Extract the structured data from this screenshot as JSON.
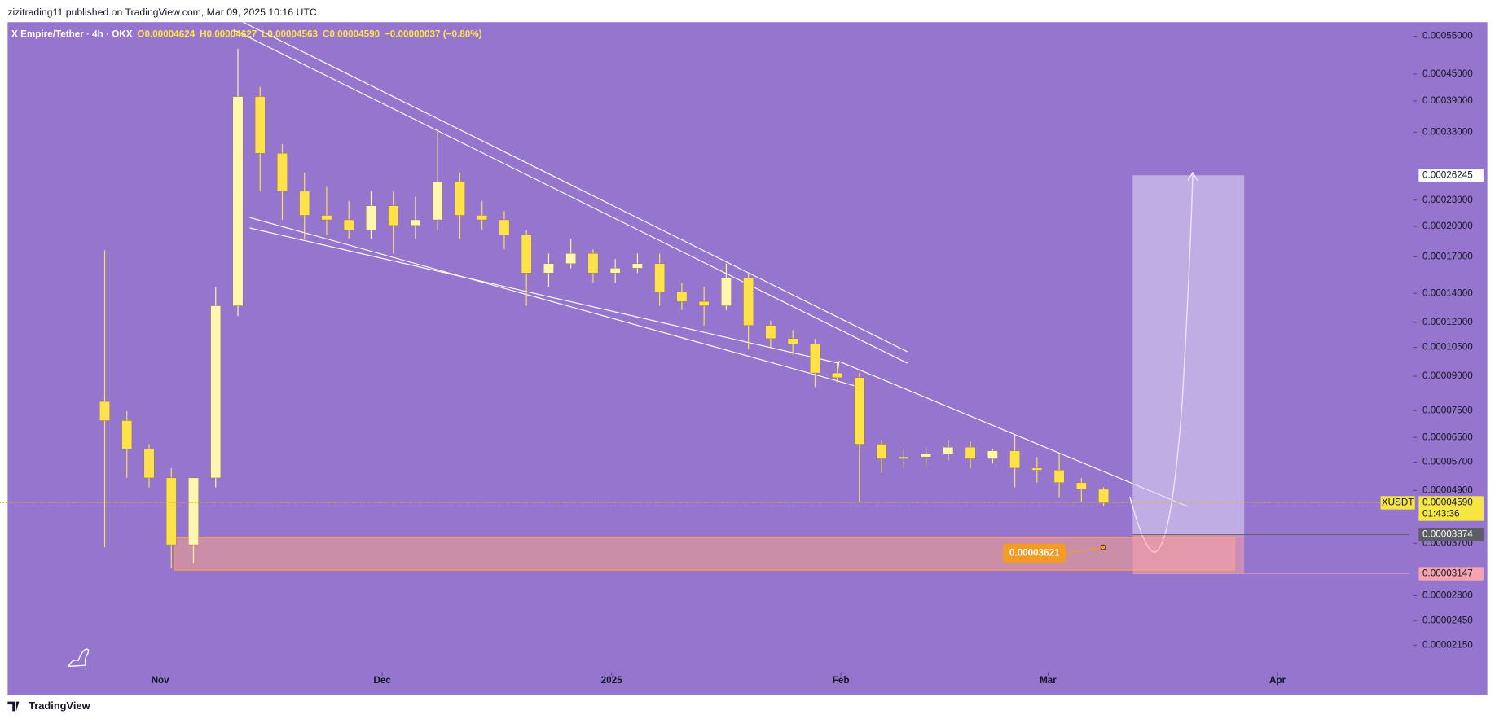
{
  "header": {
    "title": "zizitrading11 published on TradingView.com, Mar 09, 2025 10:16 UTC"
  },
  "footer": {
    "brand": "TradingView"
  },
  "chart_data": {
    "type": "candlestick",
    "legend": {
      "symbol": "X Empire/Tether · 4h · OKX",
      "open": "O0.00004624",
      "high": "H0.00004627",
      "low": "L0.00004563",
      "close": "C0.00004590",
      "change": "−0.00000037 (−0.80%)"
    },
    "log_scale": true,
    "up_color": "#fff6b0",
    "down_color": "#ffe24a",
    "xlim": [
      -21.65,
      168.8
    ],
    "xticks": [
      {
        "value": 0,
        "label": "Nov"
      },
      {
        "value": 30,
        "label": "Dec"
      },
      {
        "value": 61,
        "label": "2025"
      },
      {
        "value": 92,
        "label": "Feb"
      },
      {
        "value": 120,
        "label": "Mar"
      },
      {
        "value": 151,
        "label": "Apr"
      }
    ],
    "ylim": [
      1.902e-05,
      0.000593
    ],
    "yticks": [
      {
        "value": 0.00055,
        "label": "0.00055000"
      },
      {
        "value": 0.00045,
        "label": "0.00045000"
      },
      {
        "value": 0.00039,
        "label": "0.00039000"
      },
      {
        "value": 0.00033,
        "label": "0.00033000"
      },
      {
        "value": 0.00023,
        "label": "0.00023000"
      },
      {
        "value": 0.0002,
        "label": "0.00020000"
      },
      {
        "value": 0.00017,
        "label": "0.00017000"
      },
      {
        "value": 0.00014,
        "label": "0.00014000"
      },
      {
        "value": 0.00012,
        "label": "0.00012000"
      },
      {
        "value": 0.000105,
        "label": "0.00010500"
      },
      {
        "value": 9e-05,
        "label": "0.00009000"
      },
      {
        "value": 7.5e-05,
        "label": "0.00007500"
      },
      {
        "value": 6.5e-05,
        "label": "0.00006500"
      },
      {
        "value": 5.7e-05,
        "label": "0.00005700"
      },
      {
        "value": 4.9e-05,
        "label": "0.00004900"
      },
      {
        "value": 3.7e-05,
        "label": "0.00003700"
      },
      {
        "value": 2.8e-05,
        "label": "0.00002800"
      },
      {
        "value": 2.45e-05,
        "label": "0.00002450"
      },
      {
        "value": 2.15e-05,
        "label": "0.00002150"
      }
    ],
    "candles": [
      {
        "x": -7.5,
        "open": 7.87e-05,
        "high": 0.000176,
        "low": 3.62e-05,
        "close": 7.11e-05
      },
      {
        "x": -4.5,
        "open": 7.11e-05,
        "high": 7.48e-05,
        "low": 5.24e-05,
        "close": 6.11e-05
      },
      {
        "x": -1.5,
        "open": 6.11e-05,
        "high": 6.27e-05,
        "low": 4.98e-05,
        "close": 5.24e-05
      },
      {
        "x": 1.5,
        "open": 5.24e-05,
        "high": 5.52e-05,
        "low": 3.24e-05,
        "close": 3.67e-05
      },
      {
        "x": 4.5,
        "open": 3.67e-05,
        "high": 4.73e-05,
        "low": 3.32e-05,
        "close": 5.24e-05
      },
      {
        "x": 7.5,
        "open": 5.24e-05,
        "high": 0.000145,
        "low": 4.98e-05,
        "close": 0.000131
      },
      {
        "x": 10.5,
        "open": 0.000131,
        "high": 0.000515,
        "low": 0.000124,
        "close": 0.000399
      },
      {
        "x": 13.5,
        "open": 0.000399,
        "high": 0.00042,
        "low": 0.000241,
        "close": 0.000295
      },
      {
        "x": 16.5,
        "open": 0.000295,
        "high": 0.00031,
        "low": 0.000207,
        "close": 0.000241
      },
      {
        "x": 19.5,
        "open": 0.000241,
        "high": 0.000266,
        "low": 0.000187,
        "close": 0.000212
      },
      {
        "x": 22.5,
        "open": 0.000212,
        "high": 0.000247,
        "low": 0.000191,
        "close": 0.000207
      },
      {
        "x": 25.5,
        "open": 0.000207,
        "high": 0.000229,
        "low": 0.000187,
        "close": 0.000196
      },
      {
        "x": 28.5,
        "open": 0.000196,
        "high": 0.000241,
        "low": 0.000187,
        "close": 0.000223
      },
      {
        "x": 31.5,
        "open": 0.000223,
        "high": 0.000241,
        "low": 0.000173,
        "close": 0.000201
      },
      {
        "x": 34.5,
        "open": 0.000201,
        "high": 0.000234,
        "low": 0.000187,
        "close": 0.000207
      },
      {
        "x": 37.5,
        "open": 0.000207,
        "high": 0.000334,
        "low": 0.000196,
        "close": 0.000253
      },
      {
        "x": 40.5,
        "open": 0.000253,
        "high": 0.000266,
        "low": 0.000187,
        "close": 0.000212
      },
      {
        "x": 43.5,
        "open": 0.000212,
        "high": 0.000229,
        "low": 0.000196,
        "close": 0.000207
      },
      {
        "x": 46.5,
        "open": 0.000207,
        "high": 0.000217,
        "low": 0.000177,
        "close": 0.000191
      },
      {
        "x": 49.5,
        "open": 0.000191,
        "high": 0.000196,
        "low": 0.000131,
        "close": 0.000156
      },
      {
        "x": 52.5,
        "open": 0.000156,
        "high": 0.000173,
        "low": 0.000145,
        "close": 0.000164
      },
      {
        "x": 55.5,
        "open": 0.000164,
        "high": 0.000187,
        "low": 0.00016,
        "close": 0.000173
      },
      {
        "x": 58.5,
        "open": 0.000173,
        "high": 0.000177,
        "low": 0.000148,
        "close": 0.000156
      },
      {
        "x": 61.5,
        "open": 0.000156,
        "high": 0.000168,
        "low": 0.000148,
        "close": 0.00016
      },
      {
        "x": 64.5,
        "open": 0.00016,
        "high": 0.000173,
        "low": 0.000156,
        "close": 0.000164
      },
      {
        "x": 67.5,
        "open": 0.000164,
        "high": 0.000173,
        "low": 0.000131,
        "close": 0.000141
      },
      {
        "x": 70.5,
        "open": 0.000141,
        "high": 0.000148,
        "low": 0.000128,
        "close": 0.000134
      },
      {
        "x": 73.5,
        "open": 0.000134,
        "high": 0.000145,
        "low": 0.000118,
        "close": 0.000131
      },
      {
        "x": 76.5,
        "open": 0.000131,
        "high": 0.000164,
        "low": 0.000128,
        "close": 0.000152
      },
      {
        "x": 79.5,
        "open": 0.000152,
        "high": 0.000156,
        "low": 0.000104,
        "close": 0.000118
      },
      {
        "x": 82.5,
        "open": 0.000118,
        "high": 0.000121,
        "low": 0.000104,
        "close": 0.00011
      },
      {
        "x": 85.5,
        "open": 0.00011,
        "high": 0.000115,
        "low": 0.000101,
        "close": 0.000107
      },
      {
        "x": 88.5,
        "open": 0.000107,
        "high": 0.00011,
        "low": 8.5e-05,
        "close": 9.16e-05
      },
      {
        "x": 91.5,
        "open": 9.16e-05,
        "high": 9.74e-05,
        "low": 8.71e-05,
        "close": 8.94e-05
      },
      {
        "x": 94.5,
        "open": 8.94e-05,
        "high": 9.16e-05,
        "low": 4.62e-05,
        "close": 6.27e-05
      },
      {
        "x": 97.5,
        "open": 6.27e-05,
        "high": 6.42e-05,
        "low": 5.38e-05,
        "close": 5.8e-05
      },
      {
        "x": 100.5,
        "open": 5.8e-05,
        "high": 6.11e-05,
        "low": 5.52e-05,
        "close": 5.86e-05
      },
      {
        "x": 103.5,
        "open": 5.86e-05,
        "high": 6.17e-05,
        "low": 5.57e-05,
        "close": 5.96e-05
      },
      {
        "x": 106.5,
        "open": 5.96e-05,
        "high": 6.42e-05,
        "low": 5.75e-05,
        "close": 6.17e-05
      },
      {
        "x": 109.5,
        "open": 6.17e-05,
        "high": 6.36e-05,
        "low": 5.52e-05,
        "close": 5.8e-05
      },
      {
        "x": 112.5,
        "open": 5.8e-05,
        "high": 6.11e-05,
        "low": 5.66e-05,
        "close": 6.05e-05
      },
      {
        "x": 115.5,
        "open": 6.05e-05,
        "high": 6.59e-05,
        "low": 4.98e-05,
        "close": 5.52e-05
      },
      {
        "x": 118.5,
        "open": 5.52e-05,
        "high": 5.86e-05,
        "low": 5.11e-05,
        "close": 5.46e-05
      },
      {
        "x": 121.5,
        "open": 5.46e-05,
        "high": 5.96e-05,
        "low": 4.73e-05,
        "close": 5.11e-05
      },
      {
        "x": 124.5,
        "open": 5.11e-05,
        "high": 5.24e-05,
        "low": 4.62e-05,
        "close": 4.93e-05
      },
      {
        "x": 127.5,
        "open": 4.93e-05,
        "high": 4.98e-05,
        "low": 4.5e-05,
        "close": 4.59e-05
      }
    ],
    "last": {
      "value": 4.59e-05,
      "label": "0.00004590",
      "symbol": "XUSDT",
      "countdown": "01:43:36",
      "color": "#f5e642"
    },
    "price_tags": [
      {
        "value": 0.00026245,
        "label": "0.00026245",
        "color": "#ffffff"
      },
      {
        "value": 3.874e-05,
        "label": "0.00003874",
        "color": "#5d5d66"
      },
      {
        "value": 3.147e-05,
        "label": "0.00003147",
        "color": "#f7a3ad"
      }
    ],
    "marker": {
      "value": 3.621e-05,
      "label": "0.00003621",
      "color": "#f59a23"
    }
  }
}
